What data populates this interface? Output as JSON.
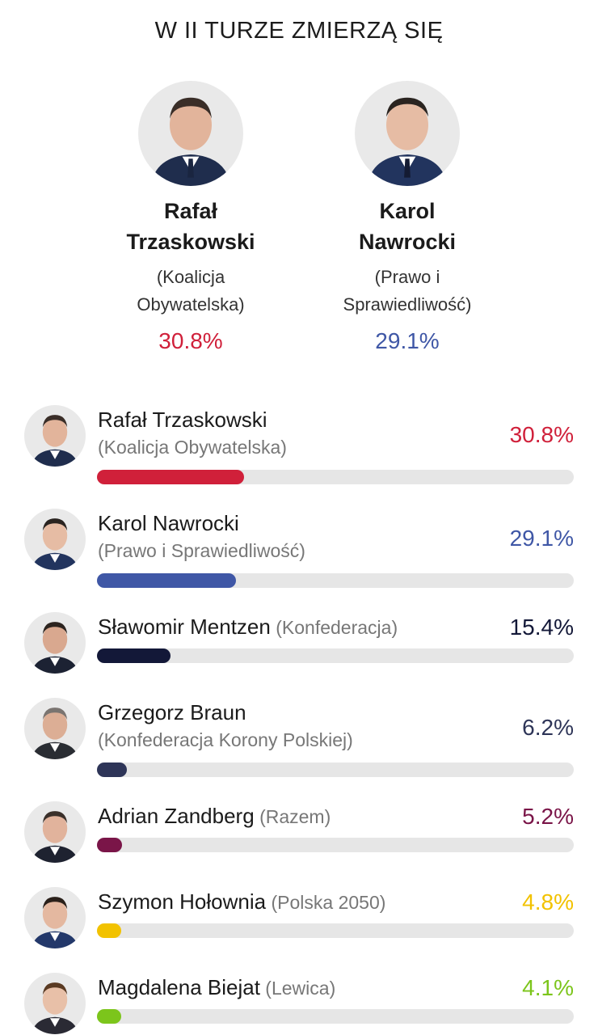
{
  "header": {
    "title": "W II TURZE ZMIERZĄ SIĘ"
  },
  "finalists": [
    {
      "name_line1": "Rafał",
      "name_line2": "Trzaskowski",
      "party_line1": "(Koalicja",
      "party_line2": "Obywatelska)",
      "percent": "30.8%",
      "color": "#d0203a"
    },
    {
      "name_line1": "Karol",
      "name_line2": "Nawrocki",
      "party_line1": "(Prawo i",
      "party_line2": "Sprawiedliwość)",
      "percent": "29.1%",
      "color": "#3f57a6"
    }
  ],
  "chart_data": {
    "type": "bar",
    "orientation": "horizontal",
    "title": "",
    "xlabel": "",
    "ylabel": "",
    "xlim": [
      0,
      100
    ],
    "categories": [
      "Rafał Trzaskowski",
      "Karol Nawrocki",
      "Sławomir Mentzen",
      "Grzegorz Braun",
      "Adrian Zandberg",
      "Szymon Hołownia",
      "Magdalena Biejat"
    ],
    "values": [
      30.8,
      29.1,
      15.4,
      6.2,
      5.2,
      4.8,
      4.1
    ],
    "rows": [
      {
        "name": "Rafał Trzaskowski",
        "party": "(Koalicja Obywatelska)",
        "party_inline": false,
        "value": 30.8,
        "label": "30.8%",
        "color": "#d0203a",
        "label_color": "#d0203a"
      },
      {
        "name": "Karol Nawrocki",
        "party": "(Prawo i Sprawiedliwość)",
        "party_inline": false,
        "value": 29.1,
        "label": "29.1%",
        "color": "#3f57a6",
        "label_color": "#3f57a6"
      },
      {
        "name": "Sławomir Mentzen",
        "party": "(Konfederacja)",
        "party_inline": true,
        "value": 15.4,
        "label": "15.4%",
        "color": "#131838",
        "label_color": "#131838"
      },
      {
        "name": "Grzegorz Braun",
        "party": "(Konfederacja Korony Polskiej)",
        "party_inline": false,
        "value": 6.2,
        "label": "6.2%",
        "color": "#2e3558",
        "label_color": "#2e3558"
      },
      {
        "name": "Adrian Zandberg",
        "party": "(Razem)",
        "party_inline": true,
        "value": 5.2,
        "label": "5.2%",
        "color": "#7a1548",
        "label_color": "#7a1548"
      },
      {
        "name": "Szymon Hołownia",
        "party": "(Polska 2050)",
        "party_inline": true,
        "value": 4.8,
        "label": "4.8%",
        "color": "#f2c200",
        "label_color": "#f2c200"
      },
      {
        "name": "Magdalena Biejat",
        "party": "(Lewica)",
        "party_inline": true,
        "value": 4.1,
        "label": "4.1%",
        "color": "#7cc51b",
        "label_color": "#7cc51b"
      }
    ]
  }
}
